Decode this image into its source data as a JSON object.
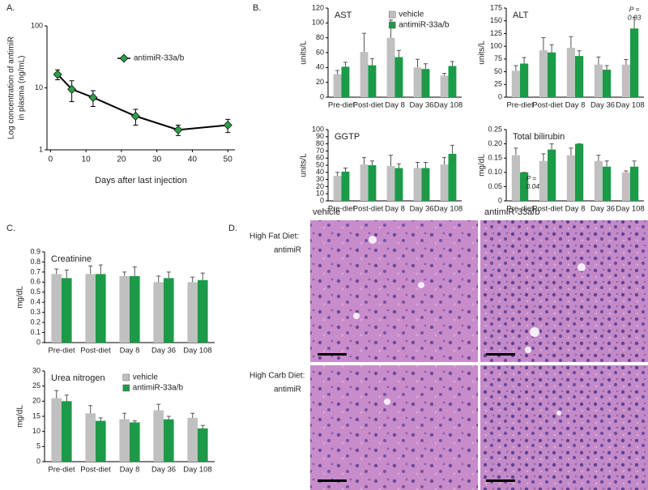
{
  "panel_labels": [
    "A.",
    "B.",
    "C.",
    "D."
  ],
  "chart_data": [
    {
      "type": "line",
      "yscale": "log",
      "xlabel": "Days after last injection",
      "ylabel": [
        "Log concentration of antimiR",
        "in plasma (ng/mL)"
      ],
      "x": [
        2,
        6,
        12,
        24,
        36,
        50
      ],
      "xlim": [
        -1,
        52
      ],
      "xticks": [
        0,
        10,
        20,
        30,
        40,
        50
      ],
      "ylim": [
        1,
        100
      ],
      "yticks": [
        1,
        10,
        100
      ],
      "legend": "upper right",
      "series": [
        {
          "name": "antimiR-33a/b",
          "color": "#2e9e4a",
          "values": [
            16.5,
            9.5,
            7,
            3.5,
            2.1,
            2.5
          ],
          "errors": [
            3,
            3.5,
            2,
            1,
            0.4,
            0.6
          ]
        }
      ]
    },
    {
      "type": "bar",
      "title": "AST",
      "ylabel": [
        "units/L"
      ],
      "categories": [
        "Pre-diet",
        "Post-diet",
        "Day 8",
        "Day 36",
        "Day 108"
      ],
      "ylim": [
        0,
        120
      ],
      "yticks": [
        0,
        20,
        40,
        60,
        80,
        100,
        120
      ],
      "legend": "upper right",
      "series": [
        {
          "name": "vehicle",
          "color": "#c0c0c0",
          "values": [
            31,
            61,
            80,
            40,
            29
          ],
          "errors": [
            5,
            25,
            24,
            11,
            3
          ]
        },
        {
          "name": "antimiR-33a/b",
          "color": "#1b9a48",
          "values": [
            41,
            43,
            54,
            38,
            42
          ],
          "errors": [
            6,
            9,
            9,
            7,
            6
          ]
        }
      ]
    },
    {
      "type": "bar",
      "title": "ALT",
      "ylabel": [
        "units/L"
      ],
      "categories": [
        "Pre-diet",
        "Post-diet",
        "Day 8",
        "Day 36",
        "Day 108"
      ],
      "ylim": [
        0,
        175
      ],
      "yticks": [
        0,
        25,
        50,
        75,
        100,
        125,
        150,
        175
      ],
      "annotations": [
        [
          "P =",
          "0.03"
        ]
      ],
      "series": [
        {
          "name": "vehicle",
          "color": "#c0c0c0",
          "values": [
            52,
            92,
            97,
            64,
            64
          ],
          "errors": [
            10,
            25,
            22,
            15,
            10
          ]
        },
        {
          "name": "antimiR-33a/b",
          "color": "#1b9a48",
          "values": [
            66,
            88,
            81,
            54,
            135
          ],
          "errors": [
            12,
            15,
            10,
            8,
            22
          ]
        }
      ]
    },
    {
      "type": "bar",
      "title": "GGTP",
      "ylabel": [
        "units/L"
      ],
      "categories": [
        "Pre-diet",
        "Post-diet",
        "Day 8",
        "Day 36",
        "Day 108"
      ],
      "ylim": [
        0,
        100
      ],
      "yticks": [
        0,
        10,
        20,
        30,
        40,
        50,
        60,
        70,
        80,
        90,
        100
      ],
      "series": [
        {
          "name": "vehicle",
          "color": "#c0c0c0",
          "values": [
            35,
            51,
            49,
            46,
            51
          ],
          "errors": [
            5,
            10,
            15,
            8,
            10
          ]
        },
        {
          "name": "antimiR-33a/b",
          "color": "#1b9a48",
          "values": [
            41,
            50,
            46,
            46,
            66
          ],
          "errors": [
            5,
            6,
            6,
            8,
            12
          ]
        }
      ]
    },
    {
      "type": "bar",
      "title": "Total bilirubin",
      "ylabel": [
        "mg/dL"
      ],
      "categories": [
        "Pre-diet",
        "Post-diet",
        "Day 8",
        "Day 36",
        "Day 108"
      ],
      "ylim": [
        0,
        0.25
      ],
      "yticks": [
        0,
        0.05,
        {
          "value": 0.1,
          "label": "0.10"
        },
        0.15,
        {
          "value": 0.2,
          "label": "0.20"
        },
        0.25
      ],
      "annotations": [
        [
          "P =",
          "0.04"
        ]
      ],
      "series": [
        {
          "name": "vehicle",
          "color": "#c0c0c0",
          "values": [
            0.16,
            0.14,
            0.16,
            0.14,
            0.1
          ],
          "errors": [
            0.025,
            0.025,
            0.025,
            0.02,
            0.005
          ]
        },
        {
          "name": "antimiR-33a/b",
          "color": "#1b9a48",
          "values": [
            0.1,
            0.18,
            0.2,
            0.12,
            0.12
          ],
          "errors": [
            0,
            0.02,
            0,
            0.02,
            0.02
          ]
        }
      ]
    },
    {
      "type": "bar",
      "title": "Creatinine",
      "ylabel": [
        "mg/dL"
      ],
      "categories": [
        "Pre-diet",
        "Post-diet",
        "Day 8",
        "Day 36",
        "Day 108"
      ],
      "ylim": [
        0,
        0.9
      ],
      "yticks": [
        0,
        0.1,
        0.2,
        0.3,
        0.4,
        0.5,
        0.6,
        0.7,
        0.8,
        0.9
      ],
      "series": [
        {
          "name": "vehicle",
          "color": "#c0c0c0",
          "values": [
            0.68,
            0.68,
            0.66,
            0.6,
            0.6
          ],
          "errors": [
            0.05,
            0.08,
            0.04,
            0.06,
            0.05
          ]
        },
        {
          "name": "antimiR-33a/b",
          "color": "#1b9a48",
          "values": [
            0.64,
            0.68,
            0.66,
            0.64,
            0.62
          ],
          "errors": [
            0.08,
            0.09,
            0.09,
            0.06,
            0.07
          ]
        }
      ]
    },
    {
      "type": "bar",
      "title": "Urea nitrogen",
      "ylabel": [
        "mg/dL"
      ],
      "categories": [
        "Pre-diet",
        "Post-diet",
        "Day 8",
        "Day 36",
        "Day 108"
      ],
      "ylim": [
        0,
        30
      ],
      "yticks": [
        0,
        5,
        10,
        15,
        20,
        25,
        30
      ],
      "legend": "upper right",
      "series": [
        {
          "name": "vehicle",
          "color": "#c0c0c0",
          "values": [
            21,
            16,
            14,
            17,
            14.5
          ],
          "errors": [
            2.5,
            2.5,
            2,
            2,
            1.5
          ]
        },
        {
          "name": "antimiR-33a/b",
          "color": "#1b9a48",
          "values": [
            20,
            13.5,
            13,
            14,
            11
          ],
          "errors": [
            2,
            1,
            0.5,
            1,
            1
          ]
        }
      ]
    }
  ],
  "histology": {
    "columns": [
      "vehicle",
      "antimiR-33a/b"
    ],
    "rows": [
      [
        "High Fat Diet:",
        "antimiR"
      ],
      [
        "High Carb Diet:",
        "antimiR"
      ]
    ]
  }
}
